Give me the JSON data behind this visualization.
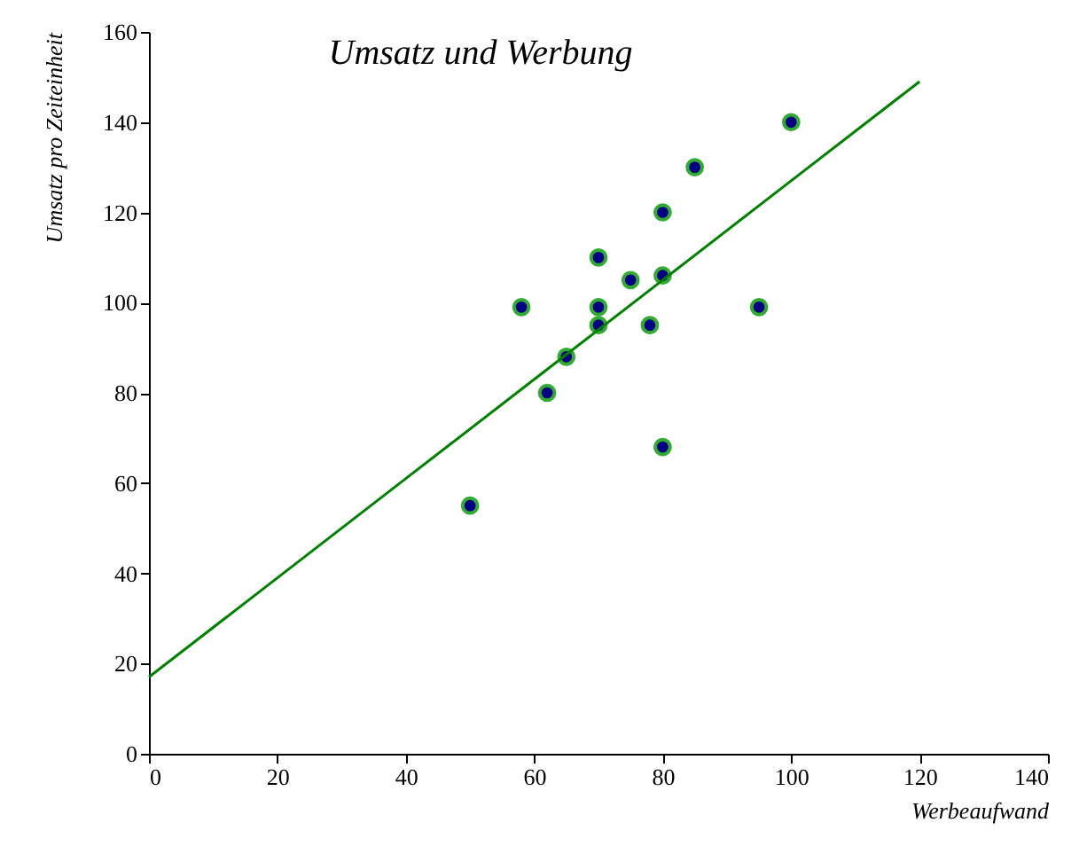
{
  "chart_data": {
    "type": "scatter",
    "title": "Umsatz und Werbung",
    "xlabel": "Werbeaufwand",
    "ylabel": "Umsatz pro Zeiteinheit",
    "series": [
      {
        "marker": "circle",
        "color": "#000080",
        "x": [
          50,
          58,
          62,
          65,
          70,
          70,
          70,
          75,
          78,
          80,
          80,
          80,
          85,
          95,
          100
        ],
        "values": [
          55,
          99,
          80,
          88,
          110,
          99,
          95,
          105,
          95,
          120,
          106,
          68,
          130,
          99,
          140
        ]
      },
      {
        "type": "line",
        "marker": "none",
        "color": "#008000",
        "x": [
          0,
          20,
          40,
          60,
          80,
          100,
          120
        ],
        "values": [
          17,
          39,
          61,
          83,
          105,
          127,
          149
        ]
      }
    ],
    "grid": false,
    "xlim": [
      0,
      140
    ],
    "xticks": [
      0,
      20,
      40,
      60,
      80,
      100,
      120,
      140
    ],
    "ylim": [
      0,
      160
    ],
    "yticks": [
      0,
      20,
      40,
      60,
      80,
      100,
      120,
      140,
      160
    ]
  }
}
